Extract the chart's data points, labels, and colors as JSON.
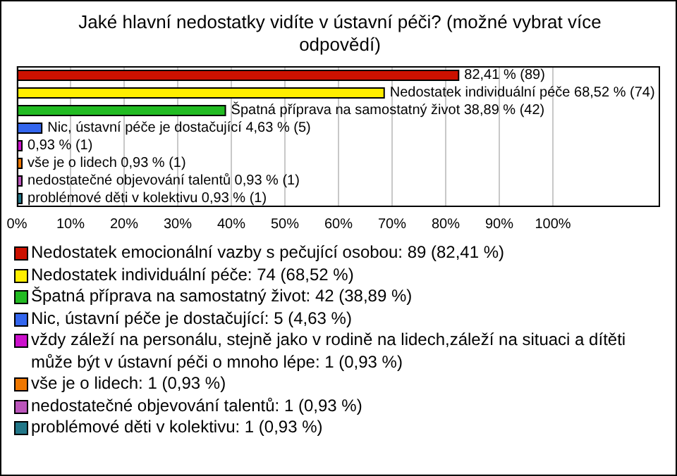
{
  "chart_data": {
    "type": "bar",
    "orientation": "horizontal",
    "stacked": true,
    "title": "Jaké hlavní nedostatky vidíte v ústavní péči? (možné vybrat více odpovědí)",
    "categories": [
      null,
      null,
      null,
      null,
      null,
      null,
      null,
      null
    ],
    "series": [
      {
        "name": "Nedostatek emocionální vazby s pečující osobou: 89 (82,41 %)",
        "color": "#cc1100",
        "values": [
          82.41,
          null,
          null,
          null,
          null,
          null,
          null,
          null
        ],
        "value_labels": [
          "82,41 % (89)",
          null,
          null,
          null,
          null,
          null,
          null,
          null
        ]
      },
      {
        "name": "Nedostatek individuální péče: 74 (68,52 %)",
        "color": "#ffee00",
        "values": [
          null,
          68.52,
          null,
          null,
          null,
          null,
          null,
          null
        ],
        "value_labels": [
          null,
          "Nedostatek individuální péče 68,52 % (74)",
          null,
          null,
          null,
          null,
          null,
          null
        ]
      },
      {
        "name": "Špatná příprava na samostatný život: 42 (38,89 %)",
        "color": "#22bb22",
        "values": [
          null,
          null,
          38.89,
          null,
          null,
          null,
          null,
          null
        ],
        "value_labels": [
          null,
          null,
          "Špatná příprava na samostatný život 38,89 % (42)",
          null,
          null,
          null,
          null,
          null
        ]
      },
      {
        "name": "Nic, ústavní péče je dostačující: 5 (4,63 %)",
        "color": "#3366ee",
        "values": [
          null,
          null,
          null,
          4.63,
          null,
          null,
          null,
          null
        ],
        "value_labels": [
          null,
          null,
          null,
          "Nic, ústavní péče je dostačující 4,63 % (5)",
          null,
          null,
          null,
          null
        ]
      },
      {
        "name": "vždy záleží na personálu, stejně jako v rodině na lidech,záleží na situaci a dítěti může být v ústavní péči o mnoho lépe: 1 (0,93 %)",
        "color": "#cc11cc",
        "values": [
          null,
          null,
          null,
          null,
          0.93,
          null,
          null,
          null
        ],
        "value_labels": [
          null,
          null,
          null,
          null,
          "0,93 % (1)",
          null,
          null,
          null
        ]
      },
      {
        "name": "vše je o lidech: 1 (0,93 %)",
        "color": "#ee7700",
        "values": [
          null,
          null,
          null,
          null,
          null,
          0.93,
          null,
          null
        ],
        "value_labels": [
          null,
          null,
          null,
          null,
          null,
          "vše je o lidech 0,93 % (1)",
          null,
          null
        ]
      },
      {
        "name": "nedostatečné objevování talentů: 1 (0,93 %)",
        "color": "#bb55bb",
        "values": [
          null,
          null,
          null,
          null,
          null,
          null,
          0.93,
          null
        ],
        "value_labels": [
          null,
          null,
          null,
          null,
          null,
          null,
          "nedostatečné objevování talentů 0,93 % (1)",
          null
        ]
      },
      {
        "name": "problémové děti v kolektivu: 1 (0,93 %)",
        "color": "#227788",
        "values": [
          null,
          null,
          null,
          null,
          null,
          null,
          null,
          0.93
        ],
        "value_labels": [
          null,
          null,
          null,
          null,
          null,
          null,
          null,
          "problémové děti v kolektivu 0,93 % (1)"
        ]
      }
    ],
    "xlim": [
      0,
      120
    ],
    "xticks": [
      {
        "value": 0,
        "label": "0%"
      },
      {
        "value": 10,
        "label": "10%"
      },
      {
        "value": 20,
        "label": "20%"
      },
      {
        "value": 30,
        "label": "30%"
      },
      {
        "value": 40,
        "label": "40%"
      },
      {
        "value": 50,
        "label": "50%"
      },
      {
        "value": 60,
        "label": "60%"
      },
      {
        "value": 70,
        "label": "70%"
      },
      {
        "value": 80,
        "label": "80%"
      },
      {
        "value": 90,
        "label": "90%"
      },
      {
        "value": 100,
        "label": "100%"
      }
    ],
    "grid": "x",
    "tick_labels": "x",
    "legend": "bottom"
  }
}
